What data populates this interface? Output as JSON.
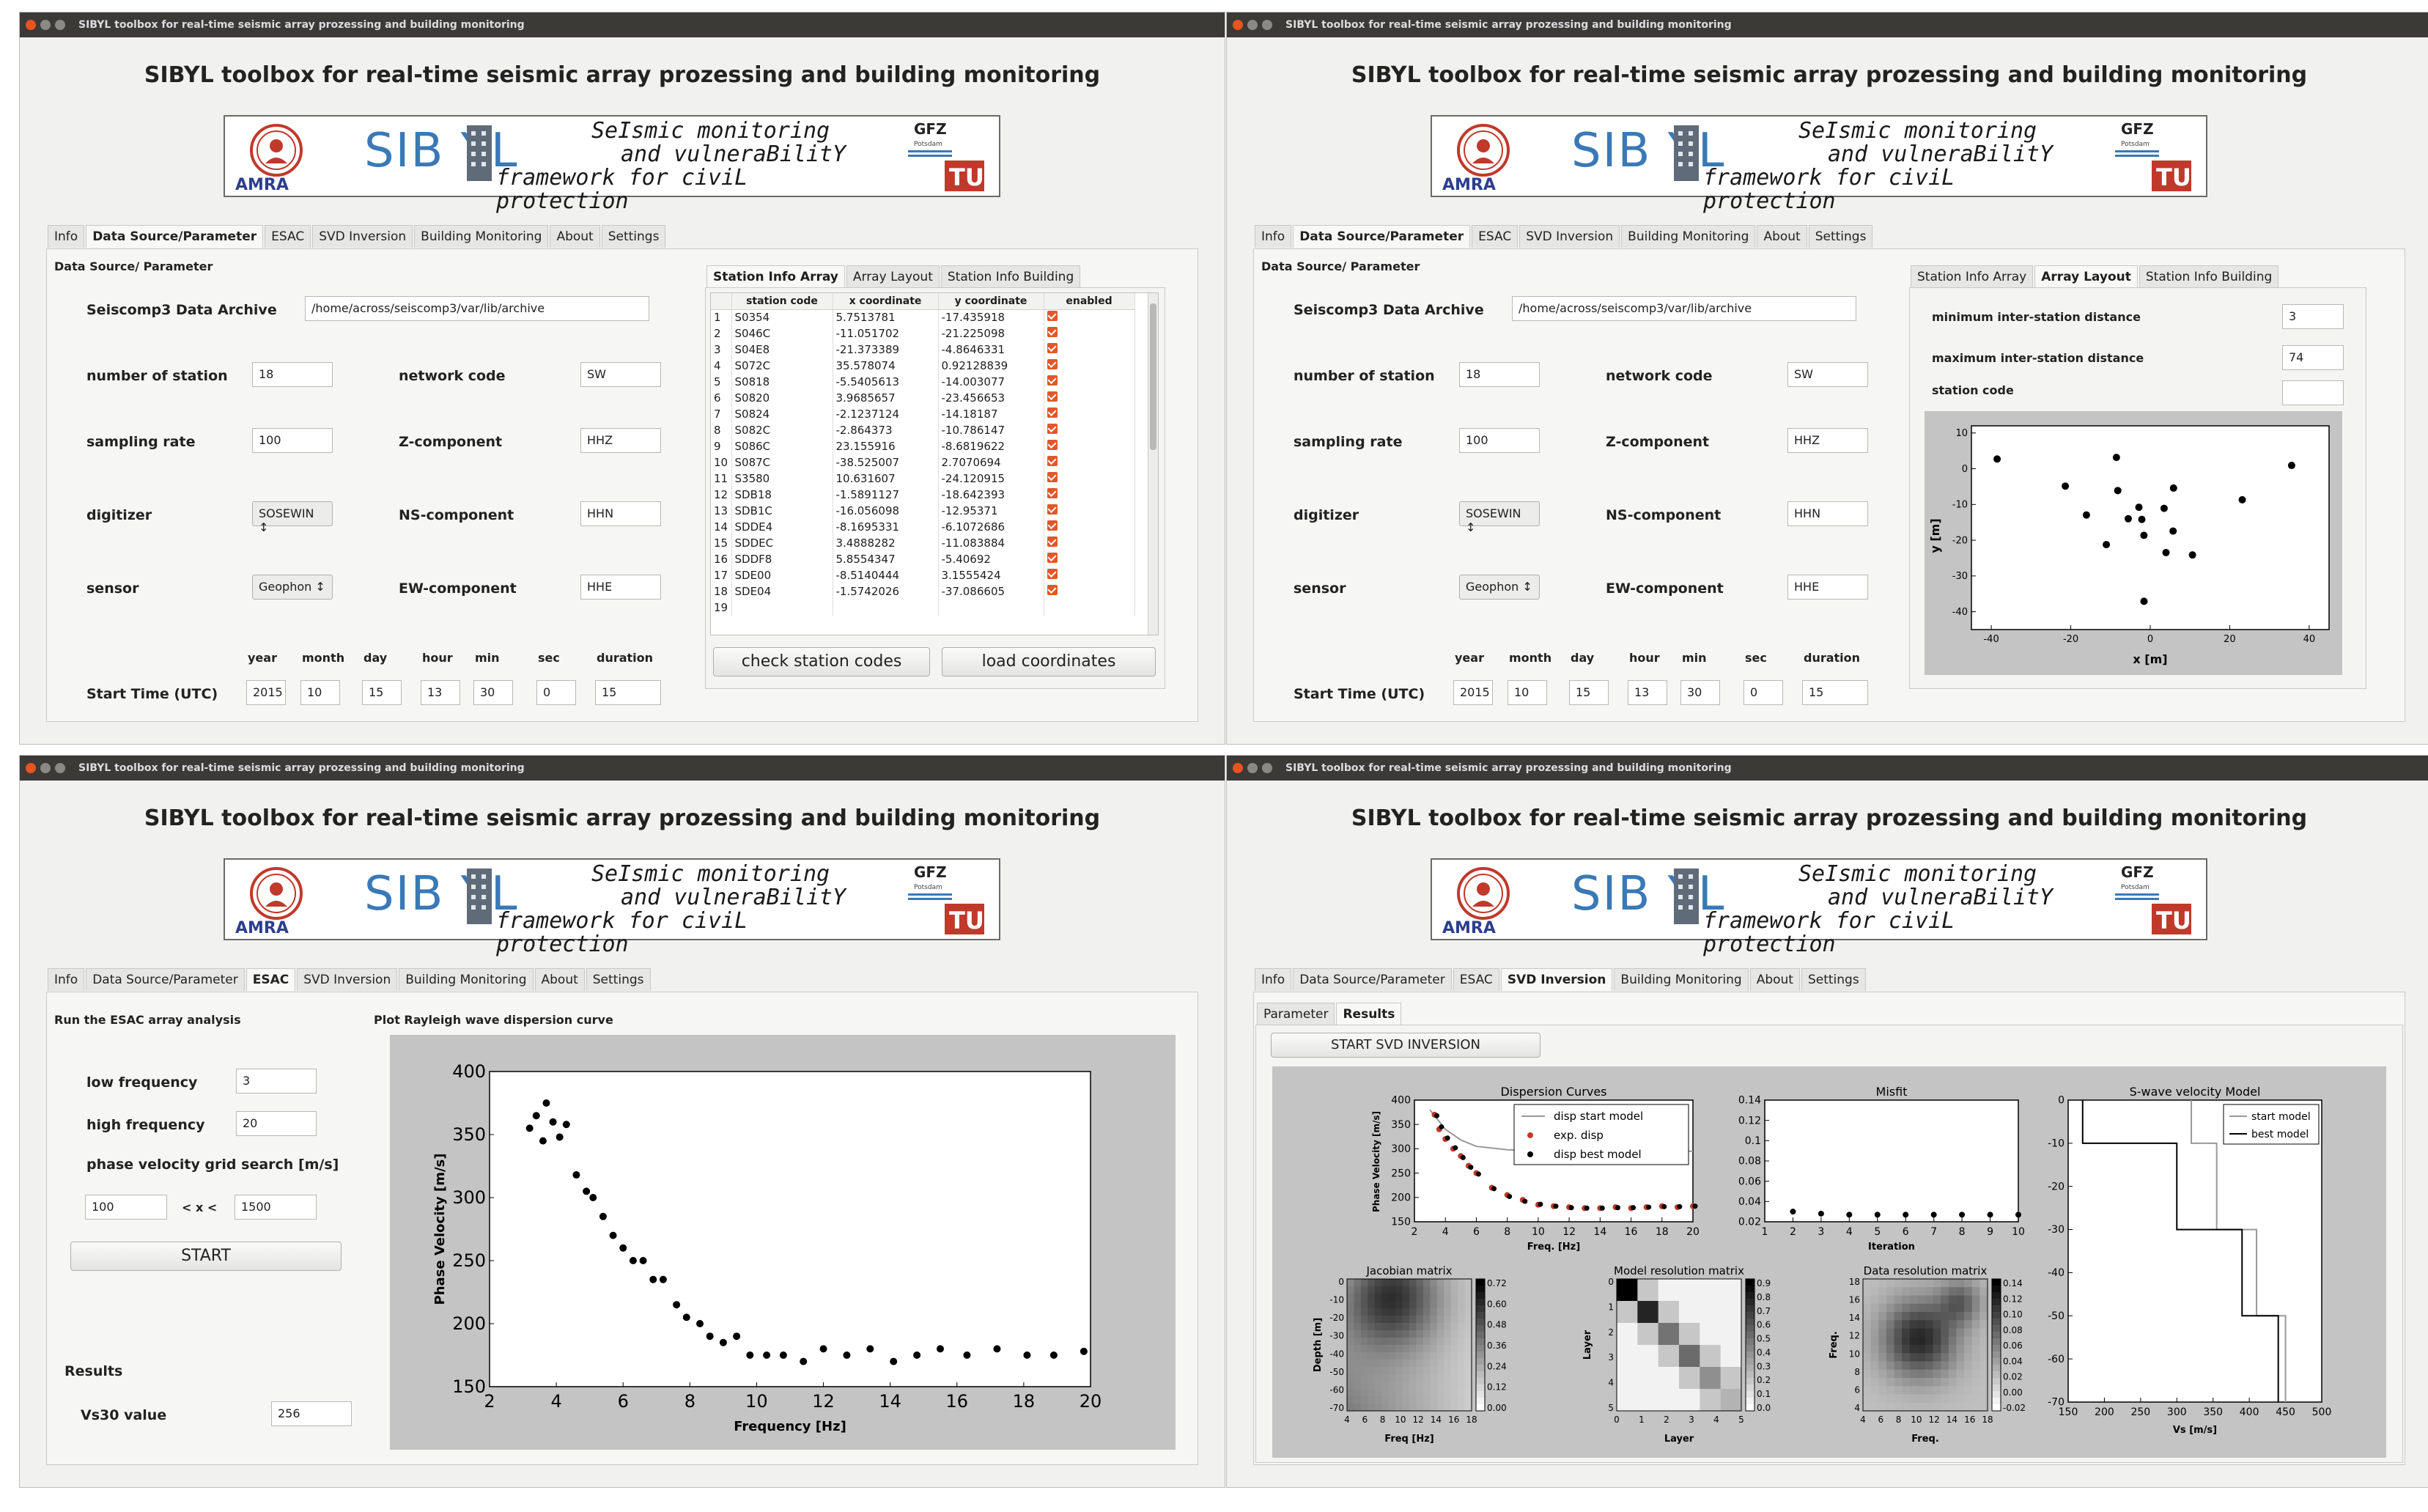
{
  "window_title": "SIBYL toolbox for real-time seismic array prozessing and building monitoring",
  "app_title": "SIBYL toolbox for real-time seismic array prozessing and building monitoring",
  "banner": {
    "left_logo_text": "AMRA",
    "word": "SIB YL",
    "slogan1": "SeIsmic monitoring",
    "slogan2": "and vulneraBilitY",
    "slogan3": "framework for civiL protection",
    "right_logo_text": "GFZ",
    "right_logo_sub": "Potsdam",
    "right_mark": "TU"
  },
  "tabs": [
    "Info",
    "Data Source/Parameter",
    "ESAC",
    "SVD Inversion",
    "Building Monitoring",
    "About",
    "Settings"
  ],
  "ds": {
    "section": "Data Source/ Parameter",
    "archive_label": "Seiscomp3 Data Archive",
    "archive_value": "/home/across/seiscomp3/var/lib/archive",
    "nstation_label": "number of station",
    "nstation_value": "18",
    "network_label": "network code",
    "network_value": "SW",
    "rate_label": "sampling rate",
    "rate_value": "100",
    "z_label": "Z-component",
    "z_value": "HHZ",
    "digitizer_label": "digitizer",
    "digitizer_value": "SOSEWIN",
    "ns_label": "NS-component",
    "ns_value": "HHN",
    "sensor_label": "sensor",
    "sensor_value": "Geophon",
    "ew_label": "EW-component",
    "ew_value": "HHE",
    "time_headers": [
      "year",
      "month",
      "day",
      "hour",
      "min",
      "sec",
      "duration"
    ],
    "start_label": "Start Time (UTC)",
    "time_values": [
      "2015",
      "10",
      "15",
      "13",
      "30",
      "0",
      "15"
    ]
  },
  "station_tabs": [
    "Station Info Array",
    "Array Layout",
    "Station Info Building"
  ],
  "station_table": {
    "headers": [
      "station code",
      "x coordinate",
      "y coordinate",
      "enabled"
    ],
    "rows": [
      [
        "1",
        "S0354",
        "5.7513781",
        "-17.435918"
      ],
      [
        "2",
        "S046C",
        "-11.051702",
        "-21.225098"
      ],
      [
        "3",
        "S04E8",
        "-21.373389",
        "-4.8646331"
      ],
      [
        "4",
        "S072C",
        "35.578074",
        "0.92128839"
      ],
      [
        "5",
        "S0818",
        "-5.5405613",
        "-14.003077"
      ],
      [
        "6",
        "S0820",
        "3.9685657",
        "-23.456653"
      ],
      [
        "7",
        "S0824",
        "-2.1237124",
        "-14.18187"
      ],
      [
        "8",
        "S082C",
        "-2.864373",
        "-10.786147"
      ],
      [
        "9",
        "S086C",
        "23.155916",
        "-8.6819622"
      ],
      [
        "10",
        "S087C",
        "-38.525007",
        "2.7070694"
      ],
      [
        "11",
        "S3580",
        "10.631607",
        "-24.120915"
      ],
      [
        "12",
        "SDB18",
        "-1.5891127",
        "-18.642393"
      ],
      [
        "13",
        "SDB1C",
        "-16.056098",
        "-12.95371"
      ],
      [
        "14",
        "SDDE4",
        "-8.1695331",
        "-6.1072686"
      ],
      [
        "15",
        "SDDEC",
        "3.4888282",
        "-11.083884"
      ],
      [
        "16",
        "SDDF8",
        "5.8554347",
        "-5.40692"
      ],
      [
        "17",
        "SDE00",
        "-8.5140444",
        "3.1555424"
      ],
      [
        "18",
        "SDE04",
        "-1.5742026",
        "-37.086605"
      ],
      [
        "19",
        "",
        "",
        ""
      ]
    ]
  },
  "check_button": "check station codes",
  "load_button": "load coordinates",
  "layout": {
    "min_label": "minimum inter-station distance",
    "min_value": "3",
    "max_label": "maximum inter-station distance",
    "max_value": "74",
    "code_label": "station code",
    "xlabel": "x [m]",
    "ylabel": "y [m]",
    "xticks": [
      "-40",
      "-20",
      "0",
      "20",
      "40"
    ],
    "yticks": [
      "10",
      "0",
      "-10",
      "-20",
      "-30",
      "-40"
    ]
  },
  "esac": {
    "section": "Run the ESAC array analysis",
    "low_label": "low frequency",
    "low_value": "3",
    "high_label": "high frequency",
    "high_value": "20",
    "grid_label": "phase velocity grid search [m/s]",
    "grid_min": "100",
    "grid_sep": "< x <",
    "grid_max": "1500",
    "start_button": "START",
    "results_label": "Results",
    "vs30_label": "Vs30 value",
    "vs30_value": "256",
    "plot_title": "Plot Rayleigh wave dispersion curve"
  },
  "svd": {
    "subtabs": [
      "Parameter",
      "Results"
    ],
    "start_button": "START SVD INVERSION",
    "disp_title": "Dispersion Curves",
    "disp_ylabel": "Phase Velocity [m/s]",
    "disp_xlabel": "Freq. [Hz]",
    "legend": [
      "disp start model",
      "exp. disp",
      "disp best model"
    ],
    "misfit_title": "Misfit",
    "misfit_xlabel": "Iteration",
    "swave_title": "S-wave velocity Model",
    "swave_xlabel": "Vs [m/s]",
    "swave_legend": [
      "start model",
      "best model"
    ],
    "jac_title": "Jacobian matrix",
    "jac_xlabel": "Freq [Hz]",
    "jac_ylabel": "Depth [m]",
    "mres_title": "Model resolution matrix",
    "mres_xlabel": "Layer",
    "mres_ylabel": "Layer",
    "dres_title": "Data resolution matrix",
    "dres_xlabel": "Freq.",
    "dres_ylabel": "Freq."
  },
  "chart_data": [
    {
      "type": "scatter",
      "title": "",
      "xlabel": "x [m]",
      "ylabel": "y [m]",
      "xlim": [
        -45,
        45
      ],
      "ylim": [
        -45,
        12
      ],
      "x": [
        5.75,
        -11.05,
        -21.37,
        35.58,
        -5.54,
        3.97,
        -2.12,
        -2.86,
        23.16,
        -38.53,
        10.63,
        -1.59,
        -16.06,
        -8.17,
        3.49,
        5.86,
        -8.51,
        -1.57
      ],
      "y": [
        -17.44,
        -21.23,
        -4.86,
        0.92,
        -14.0,
        -23.46,
        -14.18,
        -10.79,
        -8.68,
        2.71,
        -24.12,
        -18.64,
        -12.95,
        -6.11,
        -11.08,
        -5.41,
        3.16,
        -37.09
      ]
    },
    {
      "type": "scatter",
      "title": "",
      "xlabel": "Frequency [Hz]",
      "ylabel": "Phase Velocity [m/s]",
      "xlim": [
        2,
        20
      ],
      "ylim": [
        150,
        400
      ],
      "x": [
        3.2,
        3.4,
        3.6,
        3.7,
        3.9,
        4.1,
        4.3,
        4.6,
        4.9,
        5.1,
        5.4,
        5.7,
        6.0,
        6.3,
        6.6,
        6.9,
        7.2,
        7.6,
        7.9,
        8.3,
        8.6,
        9.0,
        9.4,
        9.8,
        10.3,
        10.8,
        11.4,
        12.0,
        12.7,
        13.4,
        14.1,
        14.8,
        15.5,
        16.3,
        17.2,
        18.1,
        18.9,
        19.8
      ],
      "y": [
        355,
        365,
        345,
        375,
        360,
        348,
        358,
        318,
        305,
        300,
        285,
        270,
        260,
        250,
        250,
        235,
        235,
        215,
        205,
        200,
        190,
        185,
        190,
        175,
        175,
        175,
        170,
        180,
        175,
        180,
        170,
        175,
        180,
        175,
        180,
        175,
        175,
        178
      ]
    },
    {
      "type": "line",
      "title": "Dispersion Curves",
      "xlabel": "Freq. [Hz]",
      "ylabel": "Phase Velocity [m/s]",
      "xlim": [
        2,
        20
      ],
      "ylim": [
        150,
        400
      ],
      "series": [
        {
          "name": "disp start model",
          "x": [
            3,
            4,
            5,
            6,
            8,
            10,
            14,
            20
          ],
          "y": [
            380,
            340,
            318,
            305,
            298,
            296,
            295,
            295
          ]
        },
        {
          "name": "exp. disp",
          "x": [
            3.3,
            3.6,
            4,
            4.5,
            5,
            5.5,
            6,
            7,
            8,
            9,
            10,
            11,
            12,
            13,
            14,
            15,
            16,
            17,
            18,
            19,
            20
          ],
          "y": [
            370,
            340,
            320,
            300,
            285,
            265,
            250,
            220,
            205,
            195,
            185,
            182,
            180,
            178,
            178,
            180,
            178,
            180,
            182,
            180,
            182
          ]
        },
        {
          "name": "disp best model",
          "x": [
            3.3,
            3.6,
            4,
            4.5,
            5,
            5.5,
            6,
            7,
            8,
            9,
            10,
            11,
            12,
            13,
            14,
            15,
            16,
            17,
            18,
            19,
            20
          ],
          "y": [
            368,
            345,
            322,
            302,
            282,
            262,
            248,
            218,
            202,
            192,
            186,
            182,
            179,
            178,
            178,
            179,
            179,
            180,
            181,
            181,
            182
          ]
        }
      ]
    },
    {
      "type": "scatter",
      "title": "Misfit",
      "xlabel": "Iteration",
      "xlim": [
        1,
        10
      ],
      "ylim": [
        0.02,
        0.14
      ],
      "x": [
        2,
        3,
        4,
        5,
        6,
        7,
        8,
        9,
        10
      ],
      "y": [
        0.03,
        0.028,
        0.027,
        0.027,
        0.027,
        0.027,
        0.027,
        0.027,
        0.027
      ]
    },
    {
      "type": "line",
      "title": "S-wave velocity Model",
      "xlabel": "Vs [m/s]",
      "xlim": [
        150,
        500
      ],
      "ylim": [
        -70,
        0
      ],
      "series": [
        {
          "name": "start model",
          "x": [
            320,
            320,
            355,
            355,
            410,
            410,
            450,
            450
          ],
          "y": [
            0,
            -10,
            -10,
            -30,
            -30,
            -50,
            -50,
            -70
          ]
        },
        {
          "name": "best model",
          "x": [
            170,
            170,
            300,
            300,
            390,
            390,
            440,
            440
          ],
          "y": [
            0,
            -10,
            -10,
            -30,
            -30,
            -50,
            -50,
            -70
          ]
        }
      ]
    }
  ]
}
